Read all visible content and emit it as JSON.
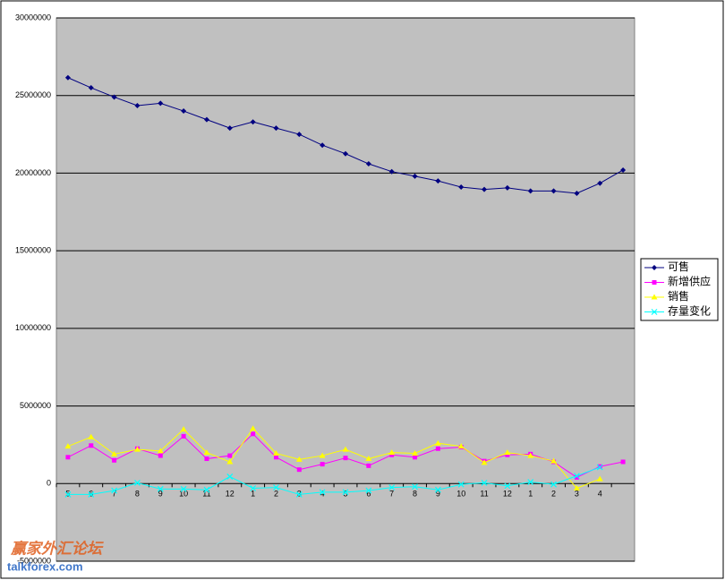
{
  "chart_data": {
    "type": "line",
    "categories": [
      "5",
      "6",
      "7",
      "8",
      "9",
      "10",
      "11",
      "12",
      "1",
      "2",
      "3",
      "4",
      "5",
      "6",
      "7",
      "8",
      "9",
      "10",
      "11",
      "12",
      "1",
      "2",
      "3",
      "4",
      null
    ],
    "series": [
      {
        "name": "可售",
        "color": "#000080",
        "marker": "diamond",
        "values": [
          26150000,
          25500000,
          24900000,
          24350000,
          24500000,
          24000000,
          23450000,
          22900000,
          23300000,
          22900000,
          22500000,
          21800000,
          21250000,
          20600000,
          20100000,
          19800000,
          19500000,
          19100000,
          18950000,
          19050000,
          18850000,
          18850000,
          18700000,
          19350000,
          20200000
        ]
      },
      {
        "name": "新增供应",
        "color": "#ff00ff",
        "marker": "square",
        "values": [
          1700000,
          2450000,
          1500000,
          2250000,
          1800000,
          3050000,
          1600000,
          1800000,
          3200000,
          1700000,
          900000,
          1250000,
          1650000,
          1150000,
          1850000,
          1700000,
          2250000,
          2350000,
          1450000,
          1850000,
          1900000,
          1400000,
          400000,
          1100000,
          1400000
        ]
      },
      {
        "name": "销售",
        "color": "#ffff00",
        "marker": "triangle",
        "values": [
          2400000,
          3000000,
          1900000,
          2200000,
          2100000,
          3500000,
          2000000,
          1400000,
          3550000,
          1950000,
          1550000,
          1800000,
          2200000,
          1600000,
          2000000,
          1950000,
          2600000,
          2400000,
          1350000,
          2000000,
          1800000,
          1450000,
          -300000,
          300000,
          null
        ]
      },
      {
        "name": "存量变化",
        "color": "#00ffff",
        "marker": "x",
        "values": [
          -700000,
          -700000,
          -450000,
          50000,
          -350000,
          -350000,
          -400000,
          450000,
          -300000,
          -250000,
          -700000,
          -550000,
          -550000,
          -450000,
          -250000,
          -200000,
          -400000,
          -50000,
          50000,
          -150000,
          100000,
          -50000,
          500000,
          1050000,
          null
        ]
      }
    ],
    "ylim": [
      -5000000,
      30000000
    ],
    "yticks": [
      -5000000,
      0,
      5000000,
      10000000,
      15000000,
      20000000,
      25000000,
      30000000
    ],
    "grid": true,
    "legend": "right",
    "plot_background": "#c0c0c0"
  },
  "watermark": {
    "text": "赢家外汇论坛",
    "url": "talkforex.com"
  }
}
